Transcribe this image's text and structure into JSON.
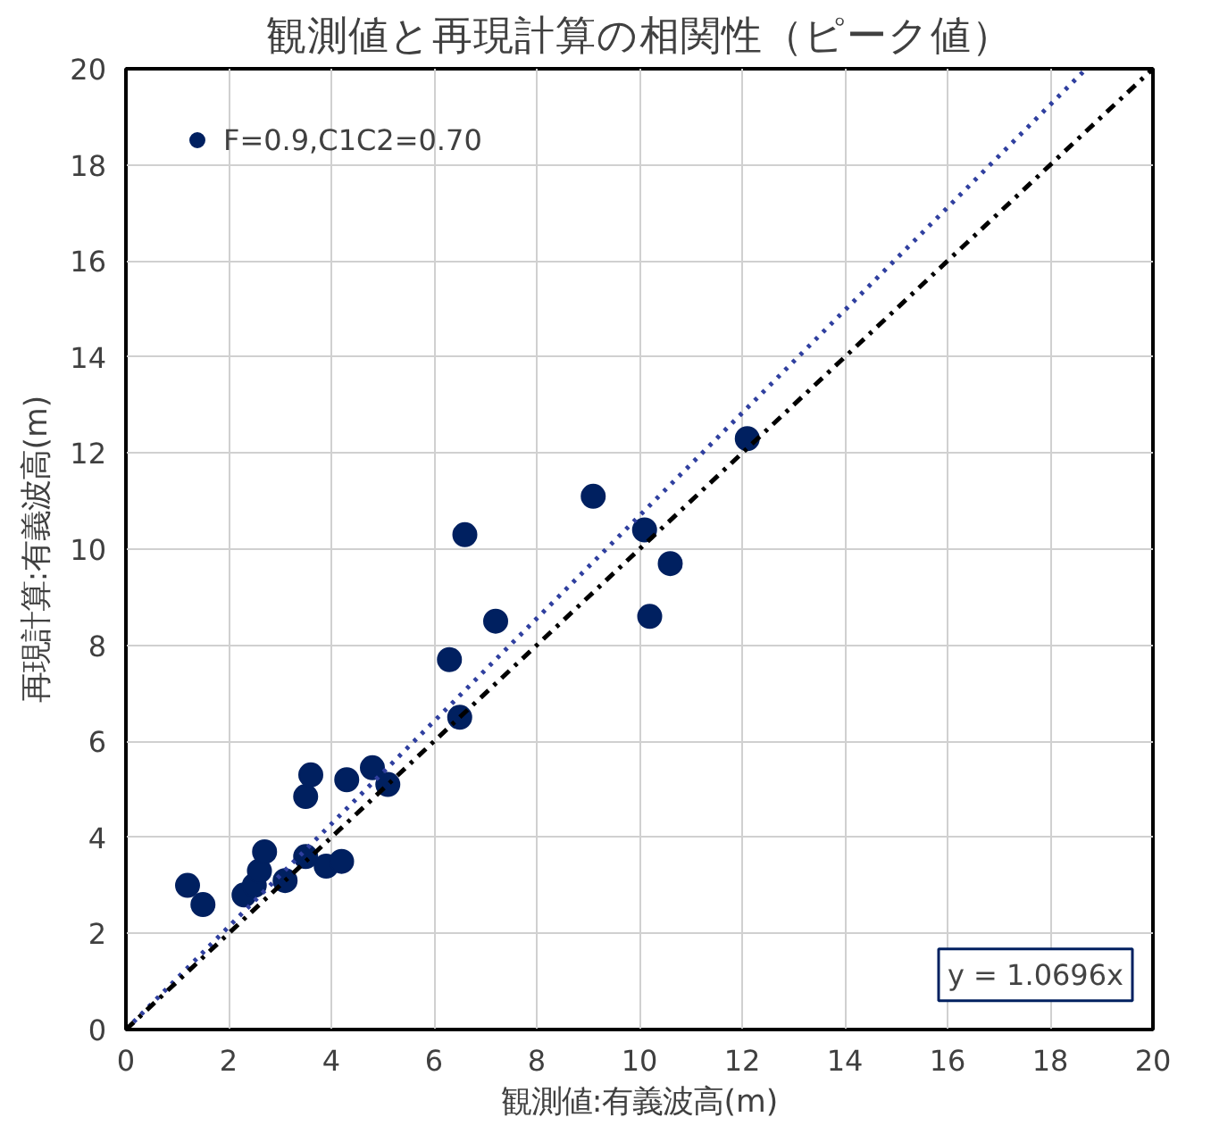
{
  "chart_data": {
    "type": "scatter",
    "title": "観測値と再現計算の相関性（ピーク値）",
    "xlabel": "観測値:有義波高(m)",
    "ylabel": "再現計算:有義波高(m)",
    "xlim": [
      0,
      20
    ],
    "ylim": [
      0,
      20
    ],
    "xticks": [
      0,
      2,
      4,
      6,
      8,
      10,
      12,
      14,
      16,
      18,
      20
    ],
    "yticks": [
      0,
      2,
      4,
      6,
      8,
      10,
      12,
      14,
      16,
      18,
      20
    ],
    "grid": true,
    "legend": "top left",
    "series": [
      {
        "name": "F=0.9,C1C2=0.70",
        "color": "#002060",
        "marker": "circle",
        "x": [
          1.2,
          1.5,
          2.3,
          2.5,
          2.6,
          2.7,
          3.1,
          3.5,
          3.5,
          3.6,
          3.9,
          4.2,
          4.3,
          4.8,
          5.1,
          6.3,
          6.5,
          6.6,
          7.2,
          9.1,
          10.1,
          10.2,
          10.6,
          12.1
        ],
        "values": [
          3.0,
          2.6,
          2.8,
          3.0,
          3.3,
          3.7,
          3.1,
          3.6,
          4.85,
          5.3,
          3.4,
          3.5,
          5.2,
          5.45,
          5.1,
          7.7,
          6.5,
          10.3,
          8.5,
          11.1,
          10.4,
          8.6,
          9.7,
          12.3
        ]
      },
      {
        "type": "line",
        "color": "#2f3f9f",
        "line_style": "dotted",
        "x": [
          0,
          18.7
        ],
        "values": [
          0,
          20
        ]
      },
      {
        "type": "line",
        "color": "#000000",
        "line_style": "dashdot",
        "x": [
          0,
          20
        ],
        "values": [
          0,
          20
        ]
      }
    ],
    "annotations": [
      "y = 1.0696x"
    ]
  }
}
